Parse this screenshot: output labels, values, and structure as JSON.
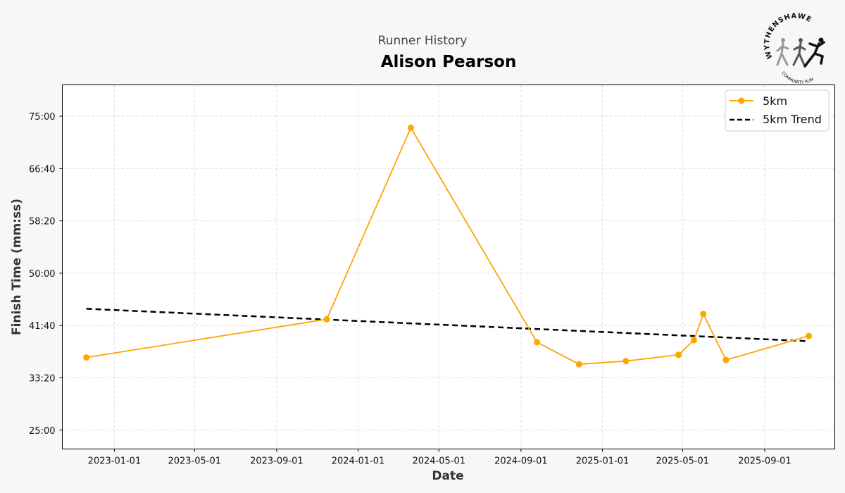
{
  "header": {
    "subtitle": "Runner History",
    "title": "Alison Pearson"
  },
  "logo": {
    "top_text": "WYTHENSHAWE",
    "bottom_text": "COMMUNITY RUN"
  },
  "colors": {
    "series": "#FFA500",
    "trend": "#000000",
    "background": "#f7f7f7",
    "plot_background": "#ffffff"
  },
  "chart_data": {
    "type": "line",
    "xlabel": "Date",
    "ylabel": "Finish Time (mm:ss)",
    "x_axis_type": "date",
    "xlim": [
      "2022-10-15",
      "2025-12-15"
    ],
    "ylim_seconds": [
      1320,
      4800
    ],
    "grid": true,
    "legend_position": "top-right",
    "x_ticks": [
      "2023-01-01",
      "2023-05-01",
      "2023-09-01",
      "2024-01-01",
      "2024-05-01",
      "2024-09-01",
      "2025-01-01",
      "2025-05-01",
      "2025-09-01"
    ],
    "y_ticks_seconds": [
      1500,
      2000,
      2500,
      3000,
      3500,
      4000,
      4500
    ],
    "y_tick_labels": [
      "25:00",
      "33:20",
      "41:40",
      "50:00",
      "58:20",
      "66:40",
      "75:00"
    ],
    "series": [
      {
        "name": "5km",
        "marker": "circle",
        "style": "solid",
        "x": [
          "2022-11-20",
          "2023-11-15",
          "2024-03-20",
          "2024-09-25",
          "2024-11-27",
          "2025-02-05",
          "2025-04-25",
          "2025-05-18",
          "2025-06-01",
          "2025-07-05",
          "2025-11-06"
        ],
        "y_seconds": [
          2195,
          2560,
          4390,
          2340,
          2130,
          2160,
          2220,
          2360,
          2610,
          2170,
          2400
        ]
      },
      {
        "name": "5km Trend",
        "marker": "none",
        "style": "dashed",
        "x": [
          "2022-11-20",
          "2025-11-06"
        ],
        "y_seconds": [
          2660,
          2350
        ]
      }
    ]
  }
}
